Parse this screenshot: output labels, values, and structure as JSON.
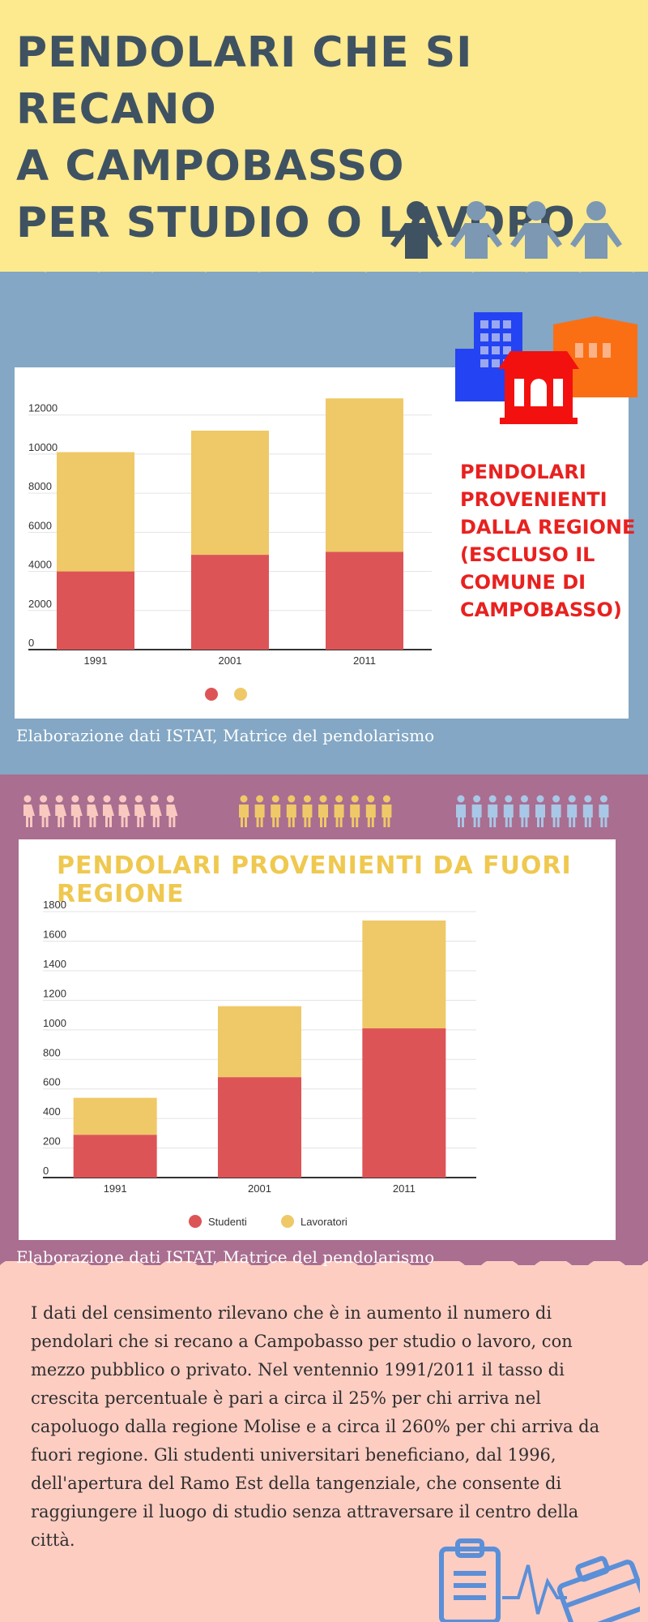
{
  "header": {
    "title_lines": [
      "PENDOLARI CHE SI RECANO",
      "A CAMPOBASSO",
      "PER STUDIO O LAVORO"
    ]
  },
  "section1": {
    "label": "PENDOLARI PROVENIENTI DALLA REGIONE (ESCLUSO IL COMUNE DI CAMPOBASSO)",
    "source": "Elaborazione dati  ISTAT, Matrice del pendolarismo"
  },
  "section2": {
    "source": "Elaborazione dati  ISTAT, Matrice del pendolarismo"
  },
  "body_text": "I dati del censimento rilevano che è in aumento il numero di pendolari che si recano a Campobasso per studio o lavoro, con mezzo pubblico o privato. Nel ventennio 1991/2011 il tasso di crescita percentuale è pari a circa il 25% per chi arriva nel capoluogo dalla regione Molise e a circa il 260% per chi arriva da fuori regione. Gli studenti universitari beneficiano, dal 1996, dell'apertura del Ramo Est della tangenziale, che consente di raggiungere il luogo di studio senza attraversare il centro della città.",
  "colors": {
    "students": "#dd5457",
    "workers": "#efc968",
    "title": "#3f5262",
    "side_label": "#e8211f"
  },
  "icons": [
    "person-icon",
    "building-icon",
    "house-icon",
    "clipboard-icon",
    "briefcase-icon"
  ],
  "chart_data": [
    {
      "type": "bar",
      "stacked": true,
      "categories": [
        "1991",
        "2001",
        "2011"
      ],
      "series": [
        {
          "values": [
            4000,
            4850,
            5000
          ]
        },
        {
          "values": [
            6100,
            6350,
            7850
          ]
        }
      ],
      "yticks": [
        0,
        2000,
        4000,
        6000,
        8000,
        10000,
        12000
      ],
      "ylim": [
        0,
        12900
      ],
      "grid": true,
      "legend": "bottom-center"
    },
    {
      "type": "bar",
      "stacked": true,
      "title": "PENDOLARI PROVENIENTI DA FUORI REGIONE",
      "categories": [
        "1991",
        "2001",
        "2011"
      ],
      "series": [
        {
          "name": "Studenti",
          "values": [
            290,
            680,
            1010
          ]
        },
        {
          "name": "Lavoratori",
          "values": [
            250,
            480,
            730
          ]
        }
      ],
      "yticks": [
        0,
        200,
        400,
        600,
        800,
        1000,
        1200,
        1400,
        1600,
        1800
      ],
      "ylim": [
        0,
        1850
      ],
      "grid": true,
      "legend": "bottom-center"
    }
  ]
}
